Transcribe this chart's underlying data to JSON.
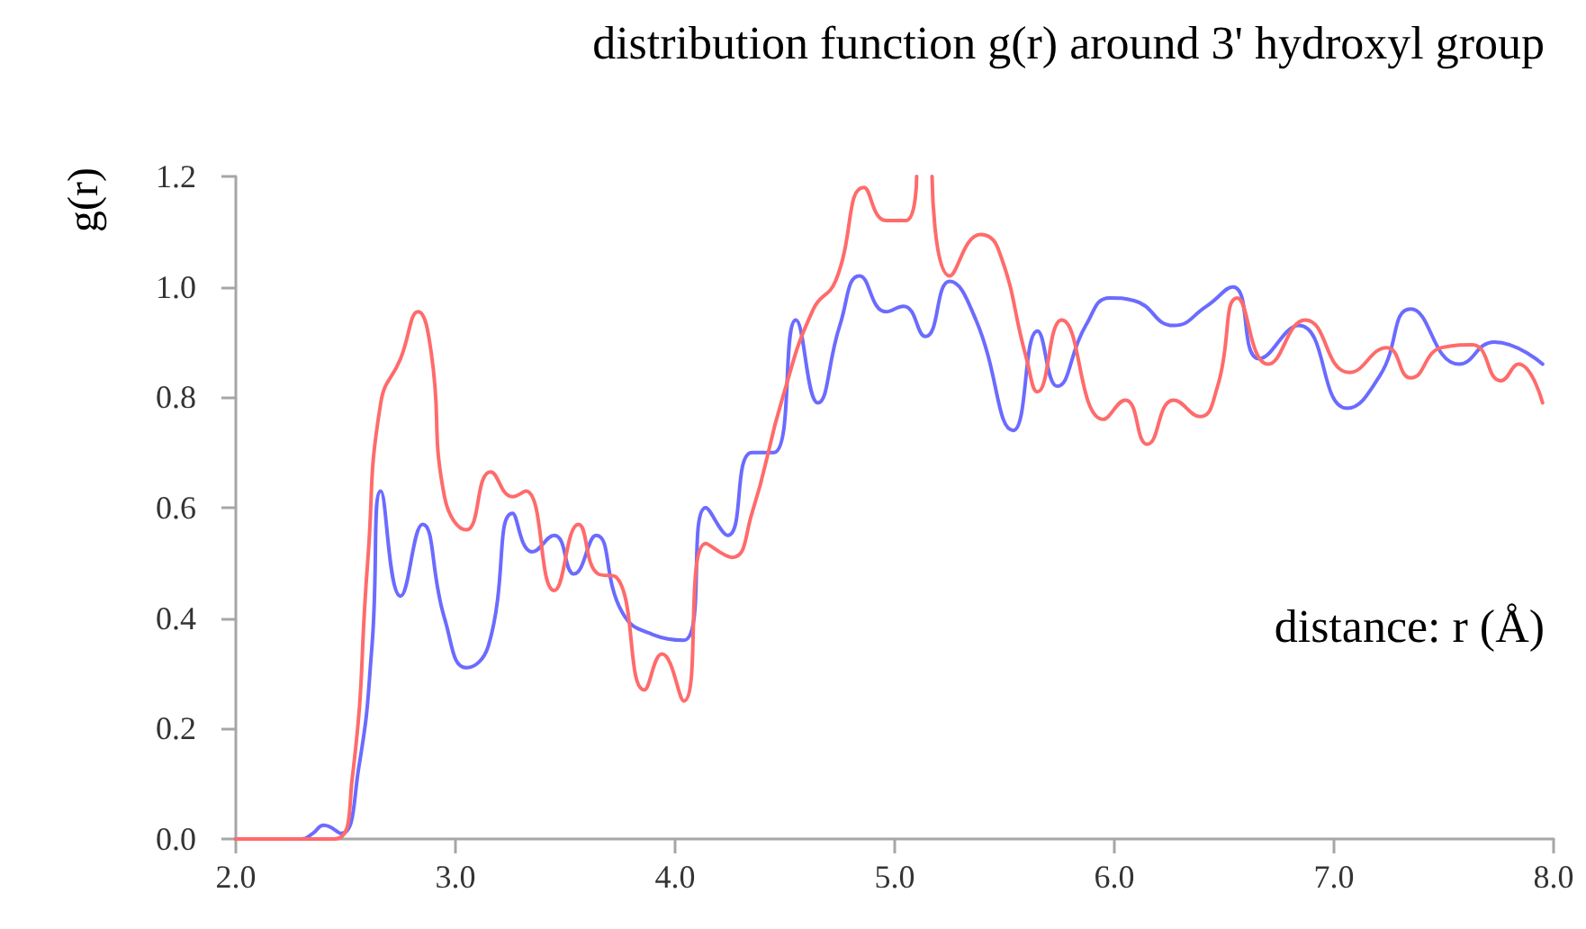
{
  "chart_data": {
    "type": "line",
    "title": "distribution function g(r) around 3' hydroxyl group",
    "xlabel": "distance: r (Å)",
    "ylabel": "g(r)",
    "xlim": [
      2.0,
      8.0
    ],
    "xticks": [
      {
        "value": 2,
        "label": "2.0"
      },
      {
        "value": 3,
        "label": "3.0"
      },
      {
        "value": 4,
        "label": "4.0"
      },
      {
        "value": 5,
        "label": "5.0"
      },
      {
        "value": 6,
        "label": "6.0"
      },
      {
        "value": 7,
        "label": "7.0"
      },
      {
        "value": 8,
        "label": "8.0"
      }
    ],
    "ylim": [
      0,
      1.2
    ],
    "yticks": [
      {
        "value": 0,
        "label": "0.0"
      },
      {
        "value": 0.2,
        "label": "0.2"
      },
      {
        "value": 0.4,
        "label": "0.4"
      },
      {
        "value": 0.6,
        "label": "0.6"
      },
      {
        "value": 0.8,
        "label": "0.8"
      },
      {
        "value": 1.0,
        "label": "1.0"
      },
      {
        "value": 1.2,
        "label": "1.2"
      }
    ],
    "series": [
      {
        "color": "#6b6bff",
        "x": [
          2.0,
          2.3,
          2.35,
          2.4,
          2.48,
          2.56,
          2.62,
          2.66,
          2.75,
          2.85,
          2.95,
          3.05,
          3.15,
          3.26,
          3.35,
          3.45,
          3.54,
          3.64,
          3.76,
          3.9,
          4.04,
          4.14,
          4.24,
          4.35,
          4.45,
          4.55,
          4.65,
          4.75,
          4.84,
          4.96,
          5.04,
          5.14,
          5.25,
          5.37,
          5.54,
          5.65,
          5.74,
          5.87,
          5.98,
          6.09,
          6.27,
          6.42,
          6.54,
          6.66,
          6.84,
          7.06,
          7.21,
          7.35,
          7.57,
          7.73,
          7.95
        ],
        "values": [
          0,
          0,
          0.01,
          0.025,
          0.01,
          0.13,
          0.35,
          0.63,
          0.44,
          0.57,
          0.4,
          0.31,
          0.35,
          0.59,
          0.52,
          0.55,
          0.48,
          0.55,
          0.41,
          0.37,
          0.36,
          0.6,
          0.55,
          0.7,
          0.7,
          0.94,
          0.79,
          0.93,
          1.02,
          0.955,
          0.965,
          0.91,
          1.01,
          0.94,
          0.74,
          0.92,
          0.82,
          0.93,
          0.98,
          0.975,
          0.93,
          0.965,
          1.0,
          0.87,
          0.93,
          0.78,
          0.84,
          0.96,
          0.86,
          0.9,
          0.86
        ]
      },
      {
        "color": "#ff6b6b",
        "x": [
          2.0,
          2.45,
          2.53,
          2.6,
          2.66,
          2.75,
          2.83,
          2.89,
          2.95,
          3.05,
          3.16,
          3.26,
          3.32,
          3.45,
          3.56,
          3.65,
          3.73,
          3.86,
          3.94,
          4.04,
          4.14,
          4.26,
          4.35,
          4.49,
          4.63,
          4.73,
          4.86,
          4.96,
          5.05,
          5.1,
          5.13,
          5.17,
          5.25,
          5.39,
          5.47,
          5.6,
          5.65,
          5.76,
          5.95,
          6.05,
          6.15,
          6.27,
          6.39,
          6.47,
          6.56,
          6.7,
          6.87,
          7.07,
          7.24,
          7.35,
          7.49,
          7.63,
          7.76,
          7.84,
          7.95
        ],
        "values": [
          0,
          0,
          0.11,
          0.5,
          0.79,
          0.87,
          0.955,
          0.88,
          0.62,
          0.56,
          0.665,
          0.62,
          0.63,
          0.45,
          0.57,
          0.48,
          0.475,
          0.27,
          0.335,
          0.25,
          0.535,
          0.51,
          0.59,
          0.8,
          0.96,
          1.01,
          1.18,
          1.12,
          1.12,
          1.2,
          null,
          1.2,
          1.02,
          1.095,
          1.07,
          0.87,
          0.81,
          0.94,
          0.76,
          0.795,
          0.715,
          0.795,
          0.765,
          0.82,
          0.98,
          0.86,
          0.94,
          0.845,
          0.89,
          0.835,
          0.89,
          0.895,
          0.83,
          0.86,
          0.79
        ]
      }
    ]
  }
}
